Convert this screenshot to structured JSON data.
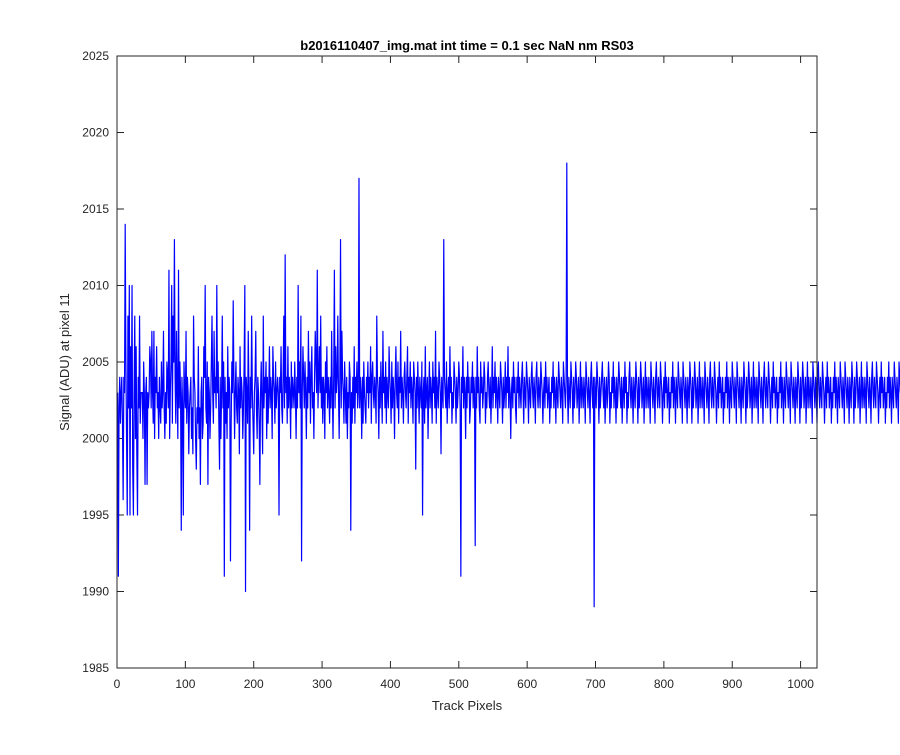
{
  "chart_data": {
    "type": "line",
    "title": "b2016110407_img.mat int time = 0.1 sec  NaN nm RS03",
    "xlabel": "Track Pixels",
    "ylabel": "Signal (ADU) at pixel 11",
    "xlim": [
      0,
      1024
    ],
    "ylim": [
      1985,
      2025
    ],
    "xticks": [
      0,
      100,
      200,
      300,
      400,
      500,
      600,
      700,
      800,
      900,
      1000
    ],
    "yticks": [
      1985,
      1990,
      1995,
      2000,
      2005,
      2010,
      2015,
      2020,
      2025
    ],
    "grid": false,
    "legend": "none",
    "series_color": "#0000ff",
    "series": [
      {
        "x_start": 1,
        "x_step": 1,
        "values": [
          2003,
          1991,
          2002,
          2004,
          2001,
          2003,
          2004,
          2001,
          1996,
          2004,
          2003,
          2014,
          2005,
          2000,
          1995,
          2008,
          2002,
          2010,
          1995,
          2006,
          2002,
          2010,
          1998,
          1995,
          2003,
          2008,
          2000,
          2006,
          1999,
          1995,
          2004,
          2002,
          2008,
          2001,
          2003,
          2003,
          2003,
          2000,
          2005,
          2003,
          1997,
          2003,
          2004,
          1997,
          2003,
          2002,
          2003,
          2006,
          2005,
          2002,
          2007,
          2003,
          2001,
          2007,
          2000,
          2004,
          2003,
          2006,
          2002,
          2003,
          2000,
          2004,
          2002,
          2001,
          2005,
          2002,
          2003,
          2007,
          2002,
          2000,
          2003,
          2001,
          2005,
          2004,
          2002,
          2011,
          2000,
          2003,
          2005,
          2010,
          2001,
          2008,
          2005,
          2013,
          2004,
          2001,
          2007,
          2003,
          2000,
          2011,
          2002,
          2005,
          2003,
          1994,
          2004,
          2002,
          1995,
          2005,
          2003,
          2002,
          2007,
          2001,
          2004,
          2003,
          1999,
          2002,
          2003,
          2004,
          2000,
          2002,
          1999,
          2008,
          2004,
          2003,
          2000,
          1998,
          2002,
          2001,
          2006,
          2000,
          2002,
          1997,
          2003,
          2004,
          2000,
          2001,
          2006,
          2004,
          2010,
          2002,
          2001,
          2005,
          1997,
          2004,
          2003,
          2000,
          2002,
          2005,
          2008,
          2003,
          2001,
          2007,
          2003,
          2004,
          2002,
          2010,
          2003,
          2005,
          2001,
          1998,
          2004,
          2000,
          2003,
          2008,
          2002,
          2005,
          1991,
          2004,
          2001,
          2003,
          2000,
          2006,
          2002,
          2004,
          2003,
          1992,
          2001,
          2005,
          2003,
          2009,
          2004,
          2000,
          2003,
          2005,
          2002,
          2001,
          2004,
          2003,
          1999,
          2006,
          2002,
          2004,
          2003,
          2000,
          2002,
          2005,
          2010,
          1990,
          2004,
          2003,
          2001,
          2007,
          2003,
          1994,
          2004,
          2002,
          2008,
          2003,
          2001,
          1999,
          2003,
          2004,
          2007,
          2002,
          2000,
          2004,
          2003,
          2001,
          1997,
          2003,
          2005,
          2002,
          1999,
          2008,
          2002,
          2004,
          2003,
          2005,
          2000,
          2004,
          2001,
          2003,
          2006,
          2002,
          2004,
          2003,
          2000,
          2006,
          2004,
          2003,
          2001,
          2005,
          2002,
          2003,
          2004,
          2003,
          1995,
          2004,
          2003,
          2006,
          2002,
          2001,
          2004,
          2008,
          2002,
          2012,
          2003,
          2004,
          2001,
          2006,
          2002,
          2004,
          2003,
          2000,
          2005,
          2002,
          2004,
          2003,
          2002,
          2005,
          2003,
          2000,
          2004,
          2002,
          2010,
          2003,
          2005,
          2002,
          2008,
          1992,
          2003,
          2006,
          2004,
          2002,
          2005,
          2003,
          2000,
          2004,
          2002,
          2007,
          2003,
          2005,
          2001,
          2004,
          2006,
          2002,
          2003,
          2000,
          2004,
          2007,
          2005,
          2003,
          2011,
          2002,
          2004,
          2006,
          2003,
          2008,
          2002,
          2004,
          2001,
          2004,
          2003,
          2000,
          2005,
          2003,
          2006,
          2002,
          2004,
          2003,
          2001,
          2004,
          2002,
          2007,
          2003,
          2000,
          2004,
          2011,
          2002,
          2006,
          2003,
          2004,
          2008,
          2003,
          2000,
          2004,
          2013,
          2002,
          2007,
          2004,
          2003,
          2001,
          2005,
          2003,
          2001,
          2004,
          2000,
          2003,
          2002,
          2005,
          2004,
          1994,
          2003,
          2001,
          2004,
          2002,
          2006,
          2001,
          2004,
          2003,
          2005,
          2002,
          2003,
          2017,
          2002,
          2004,
          2003,
          2000,
          2004,
          2001,
          2005,
          2003,
          2002,
          2001,
          2004,
          2003,
          2005,
          2002,
          2004,
          2003,
          2006,
          2001,
          2004,
          2005,
          2003,
          2002,
          2004,
          2003,
          2001,
          2008,
          2004,
          2003,
          2000,
          2004,
          2002,
          2005,
          2003,
          2001,
          2007,
          2003,
          2004,
          2002,
          2005,
          2001,
          2004,
          2003,
          2002,
          2006,
          2004,
          2003,
          2001,
          2005,
          2002,
          2004,
          2003,
          2000,
          2004,
          2006,
          2003,
          2002,
          2005,
          2001,
          2004,
          2003,
          2007,
          2002,
          2004,
          2003,
          2001,
          2004,
          2005,
          2003,
          2002,
          2004,
          2006,
          2001,
          2004,
          2003,
          2005,
          2002,
          2004,
          2003,
          2001,
          2005,
          2004,
          2003,
          1998,
          2004,
          2002,
          2005,
          2003,
          2001,
          2004,
          2003,
          2002,
          2005,
          1995,
          2003,
          2004,
          2001,
          2006,
          2002,
          2003,
          2004,
          2000,
          2003,
          2005,
          2002,
          2004,
          2003,
          2001,
          2005,
          2003,
          2004,
          2002,
          2007,
          2001,
          2004,
          2003,
          2002,
          2005,
          2004,
          2003,
          1999,
          2004,
          2003,
          2002,
          2013,
          2004,
          2003,
          2002,
          2005,
          2001,
          2003,
          2004,
          2002,
          2006,
          2003,
          2004,
          2001,
          2003,
          2002,
          2005,
          2004,
          2003,
          2001,
          2004,
          2002,
          2003,
          2005,
          2004,
          2002,
          1991,
          2004,
          2003,
          2006,
          2002,
          2004,
          2003,
          2000,
          2004,
          2002,
          2005,
          2003,
          2004,
          2001,
          2002,
          2004,
          2003,
          2005,
          2002,
          2004,
          2003,
          1993,
          2004,
          2002,
          2006,
          2003,
          2004,
          2002,
          2001,
          2005,
          2003,
          2004,
          2002,
          2003,
          2005,
          2004,
          2001,
          2003,
          2002,
          2004,
          2005,
          2003,
          2002,
          2004,
          2001,
          2003,
          2006,
          2002,
          2004,
          2003,
          2005,
          2002,
          2004,
          2003,
          2001,
          2004,
          2003,
          2002,
          2005,
          2004,
          2003,
          2001,
          2004,
          2002,
          2003,
          2005,
          2002,
          2004,
          2003,
          2006,
          2002,
          2004,
          2003,
          2000,
          2003,
          2004,
          2002,
          2005,
          2003,
          2004,
          2002,
          2001,
          2004,
          2003,
          2005,
          2002,
          2004,
          2003,
          2002,
          2004,
          2005,
          2003,
          2001,
          2004,
          2003,
          2002,
          2005,
          2004,
          2003,
          2001,
          2004,
          2003,
          2002,
          2004,
          2005,
          2003,
          2002,
          2004,
          2003,
          2001,
          2004,
          2005,
          2003,
          2002,
          2004,
          2003,
          2002,
          2005,
          2004,
          2003,
          2001,
          2003,
          2004,
          2002,
          2005,
          2003,
          2004,
          2002,
          2003,
          2004,
          2001,
          2003,
          2002,
          2004,
          2003,
          2005,
          2002,
          2004,
          2003,
          2001,
          2004,
          2003,
          2002,
          2005,
          2004,
          2003,
          2002,
          2004,
          2003,
          2001,
          2005,
          2004,
          2003,
          2002,
          2004,
          2018,
          2003,
          2001,
          2004,
          2003,
          2002,
          2005,
          2004,
          2003,
          2001,
          2004,
          2002,
          2003,
          2005,
          2004,
          2002,
          2003,
          2004,
          2001,
          2003,
          2005,
          2002,
          2004,
          2003,
          2002,
          2004,
          2003,
          2001,
          2005,
          2004,
          2003,
          2002,
          2004,
          2003,
          2001,
          2004,
          2005,
          2003,
          2002,
          2004,
          1989,
          2004,
          2003,
          2002,
          2005,
          2004,
          2003,
          2001,
          2004,
          2002,
          2003,
          2004,
          2005,
          2003,
          2002,
          2004,
          2001,
          2003,
          2004,
          2002,
          2003,
          2005,
          2004,
          2001,
          2003,
          2002,
          2004,
          2003,
          2005,
          2002,
          2004,
          2003,
          2001,
          2004,
          2002,
          2003,
          2005,
          2004,
          2003,
          2002,
          2004,
          2001,
          2003,
          2004,
          2002,
          2005,
          2003,
          2004,
          2001,
          2003,
          2002,
          2004,
          2005,
          2003,
          2002,
          2004,
          2003,
          2001,
          2004,
          2003,
          2002,
          2005,
          2004,
          2003,
          2001,
          2004,
          2002,
          2003,
          2005,
          2004,
          2002,
          2003,
          2004,
          2001,
          2003,
          2005,
          2002,
          2004,
          2003,
          2002,
          2004,
          2003,
          2001,
          2005,
          2004,
          2003,
          2002,
          2004,
          2003,
          2001,
          2004,
          2005,
          2003,
          2002,
          2004,
          2003,
          2002,
          2005,
          2004,
          2003,
          2001,
          2003,
          2004,
          2002,
          2005,
          2003,
          2004,
          2002,
          2003,
          2004,
          2001,
          2003,
          2002,
          2004,
          2003,
          2005,
          2002,
          2004,
          2003,
          2001,
          2004,
          2003,
          2002,
          2005,
          2004,
          2003,
          2002,
          2004,
          2003,
          2001,
          2005,
          2004,
          2003,
          2002,
          2004,
          2003,
          2001,
          2004,
          2003,
          2002,
          2005,
          2004,
          2003,
          2001,
          2004,
          2002,
          2003,
          2005,
          2004,
          2002,
          2003,
          2004,
          2001,
          2003,
          2005,
          2002,
          2004,
          2003,
          2002,
          2004,
          2003,
          2001,
          2005,
          2004,
          2003,
          2002,
          2004,
          2003,
          2001,
          2004,
          2005,
          2003,
          2002,
          2004,
          2003,
          2002,
          2005,
          2004,
          2003,
          2001,
          2003,
          2004,
          2002,
          2005,
          2003,
          2004,
          2002,
          2003,
          2004,
          2001,
          2003,
          2002,
          2004,
          2003,
          2005,
          2002,
          2004,
          2003,
          2001,
          2004,
          2003,
          2002,
          2005,
          2004,
          2003,
          2002,
          2004,
          2003,
          2001,
          2005,
          2004,
          2003,
          2002,
          2004,
          2003,
          2001,
          2004,
          2003,
          2002,
          2005,
          2004,
          2003,
          2001,
          2004,
          2002,
          2003,
          2005,
          2004,
          2002,
          2003,
          2004,
          2001,
          2003,
          2005,
          2002,
          2004,
          2003,
          2002,
          2004,
          2003,
          2001,
          2005,
          2004,
          2003,
          2002,
          2004,
          2003,
          2001,
          2004,
          2005,
          2003,
          2002,
          2004,
          2003,
          2002,
          2005,
          2004,
          2003,
          2001,
          2003,
          2004,
          2002,
          2005,
          2003,
          2004,
          2002,
          2003,
          2004,
          2001,
          2003,
          2002,
          2004,
          2003,
          2005,
          2002,
          2004,
          2003,
          2001,
          2004,
          2003,
          2002,
          2005,
          2004,
          2003,
          2002,
          2004,
          2003,
          2001,
          2005,
          2004,
          2003,
          2002,
          2004,
          2003,
          2001,
          2004,
          2003,
          2002,
          2005,
          2004,
          2003,
          2001,
          2004,
          2002,
          2003,
          2005,
          2004,
          2002,
          2003,
          2004,
          2001,
          2003,
          2005,
          2002,
          2004,
          2003,
          2002,
          2004,
          2003,
          2001,
          2005,
          2004,
          2003,
          2002,
          2004,
          2003,
          2001,
          2004,
          2005,
          2003,
          2002,
          2004,
          2003,
          2002,
          2005,
          2004,
          2003,
          2001,
          2003,
          2004,
          2002,
          2005,
          2003,
          2004,
          2002,
          2003,
          2004,
          2001,
          2003,
          2002,
          2004,
          2003,
          2005,
          2002,
          2004,
          2003,
          2001,
          2004,
          2003,
          2002,
          2005,
          2004,
          2003,
          2002,
          2004,
          2003,
          2001,
          2005,
          2004,
          2003,
          2002,
          2004,
          2003,
          2001,
          2004,
          2003,
          2002,
          2005,
          2004,
          2003,
          2001,
          2004,
          2002,
          2003,
          2005,
          2004,
          2002,
          2003,
          2004,
          2001,
          2003,
          2005,
          2002,
          2004,
          2003,
          2002,
          2004,
          2003,
          2001,
          2005,
          2004,
          2003,
          2002,
          2004,
          2003,
          2001,
          2004,
          2005,
          2003,
          2002,
          2004,
          2003,
          2002,
          2005,
          2004,
          2003,
          2001,
          2003,
          2004,
          2002,
          2005,
          2003,
          2004,
          2002,
          2003,
          2004,
          2001,
          2003,
          2002,
          2004,
          2003,
          2005,
          2002,
          2004,
          2003,
          2001,
          2004,
          2003,
          2002,
          2005,
          2004,
          2003,
          2002,
          2004,
          2003,
          2001,
          2005,
          2004,
          2003
        ]
      }
    ]
  }
}
